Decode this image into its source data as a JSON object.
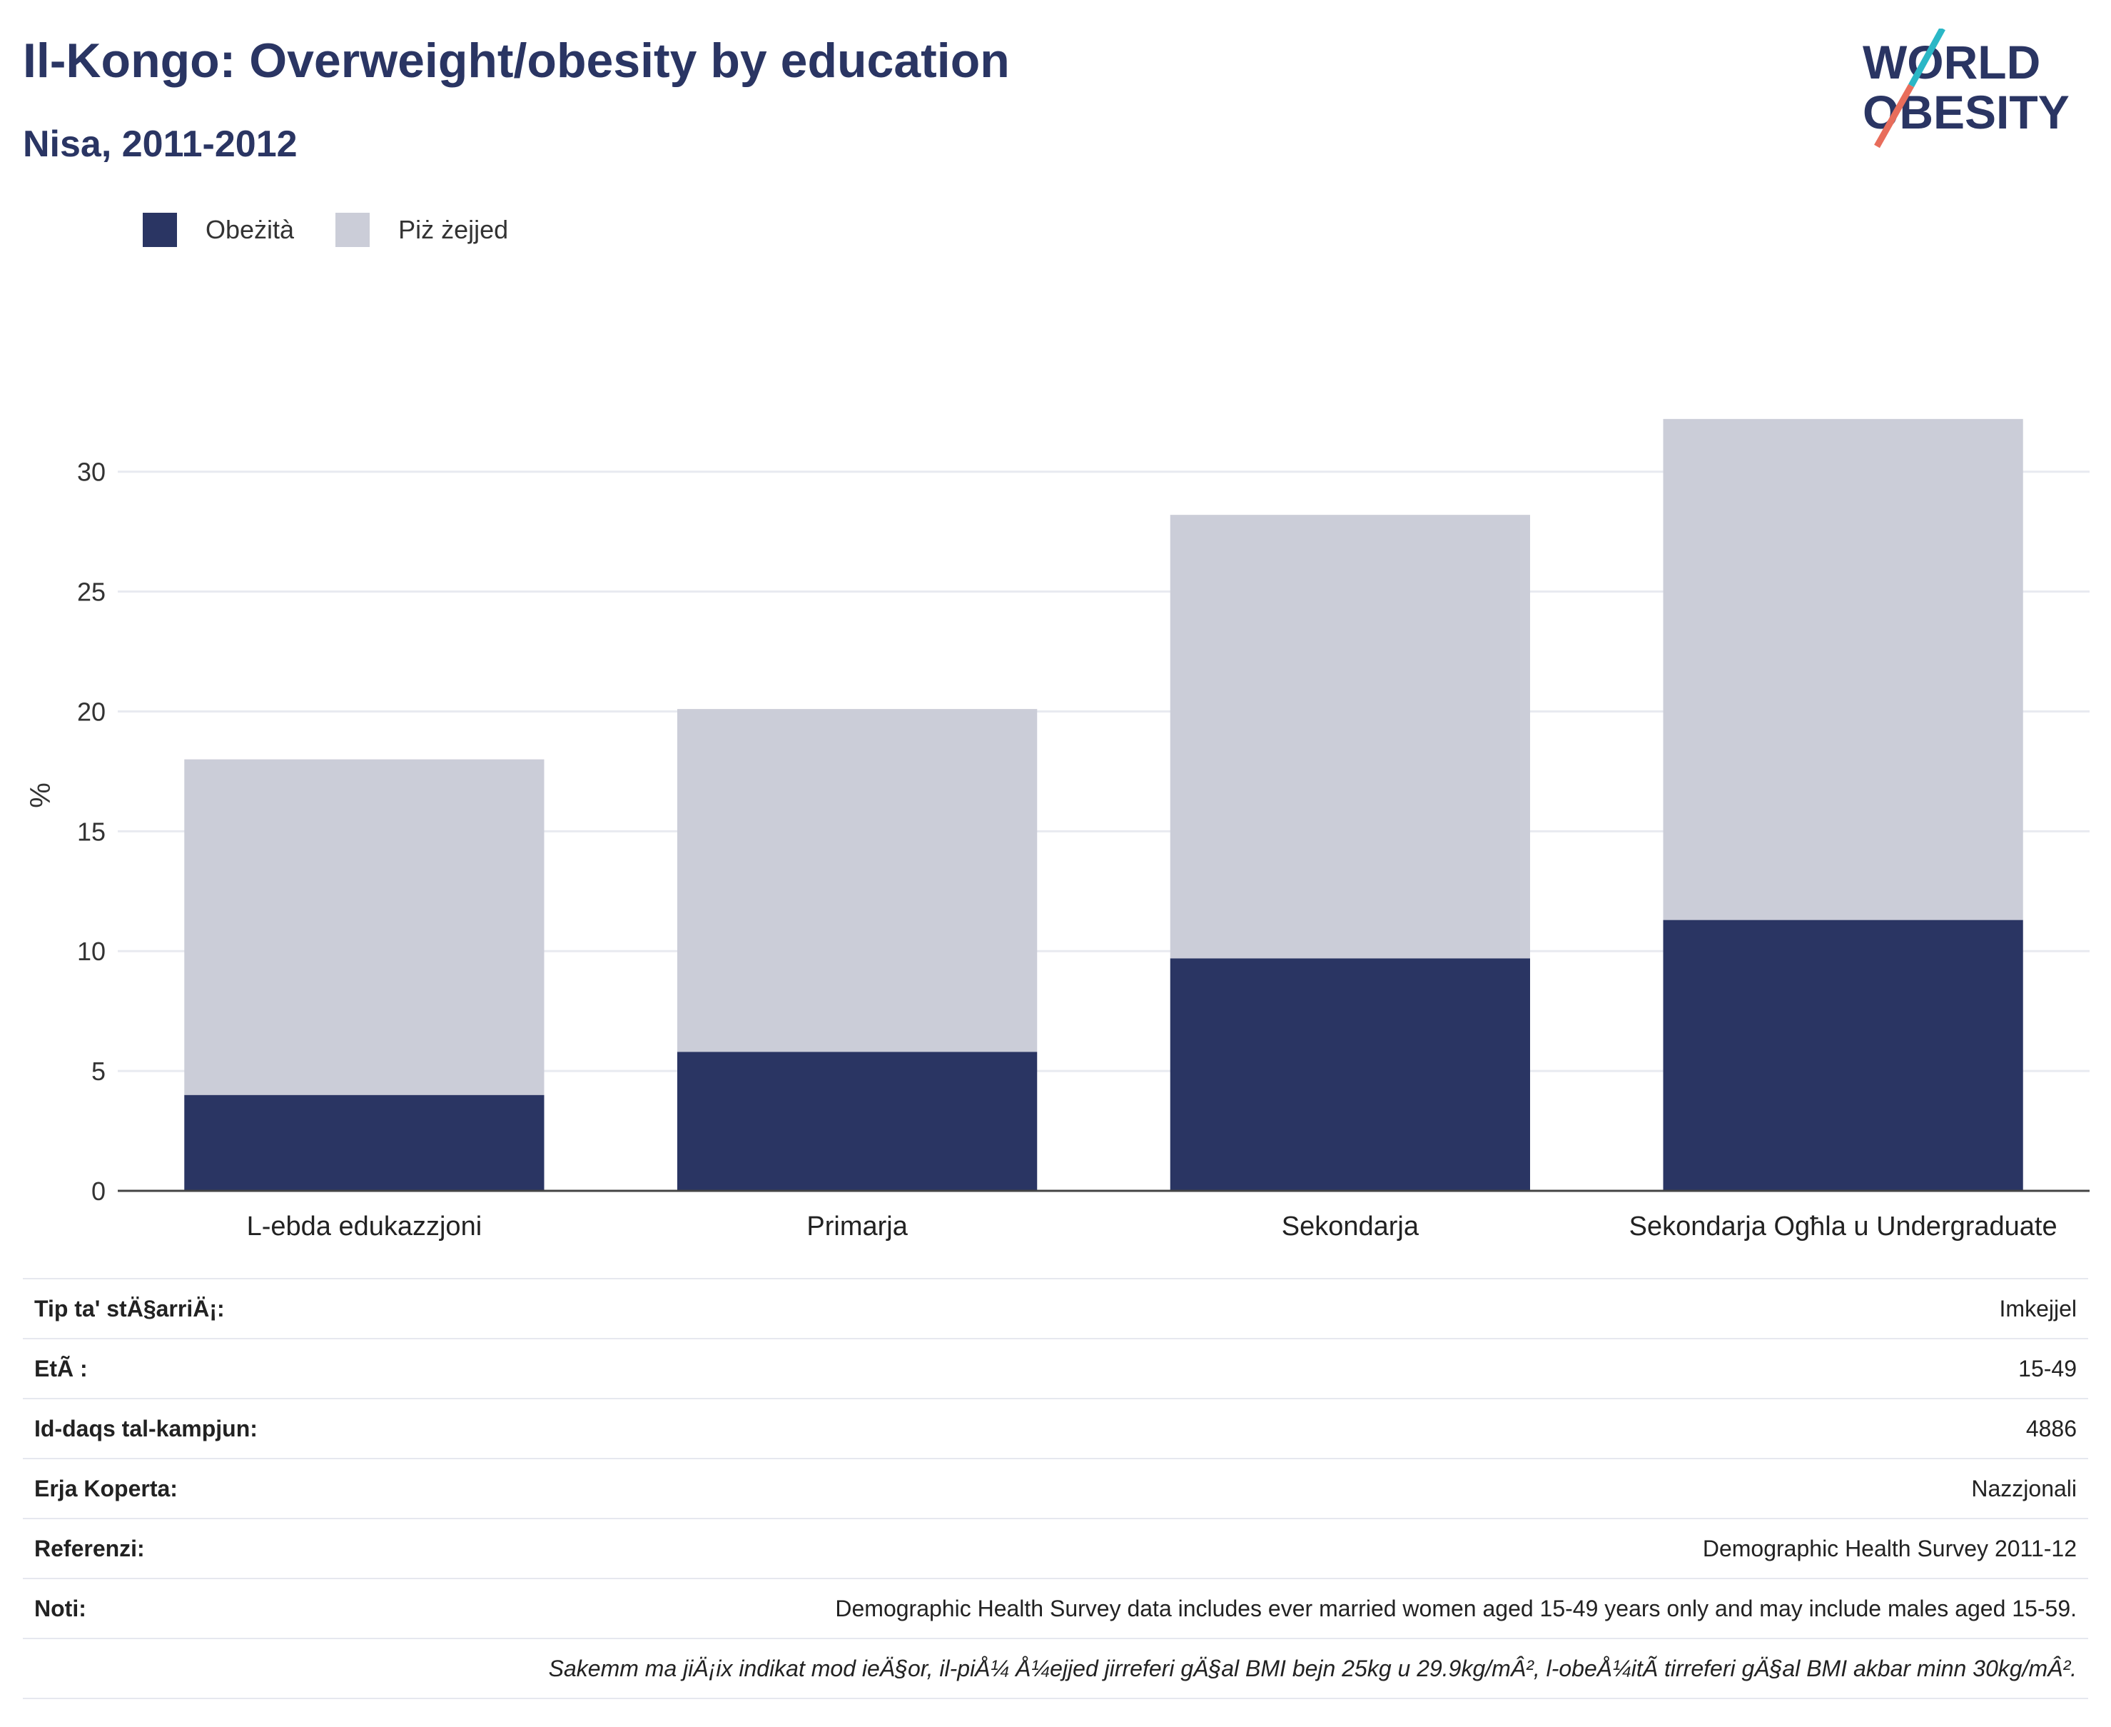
{
  "header": {
    "title": "Il-Kongo: Overweight/obesity by education",
    "subtitle": "Nisa, 2011-2012"
  },
  "logo": {
    "line1": "WORLD",
    "line2": "OBESITY",
    "accent_colors": [
      "#2ab7c6",
      "#e86d5b"
    ]
  },
  "legend": [
    {
      "label": "Obeżità",
      "color": "#2a3563"
    },
    {
      "label": "Piż żejjed",
      "color": "#cbcdd8"
    }
  ],
  "chart_data": {
    "type": "bar",
    "stacked": true,
    "categories": [
      "L-ebda edukazzjoni",
      "Primarja",
      "Sekondarja",
      "Sekondarja Ogħla u Undergraduate"
    ],
    "series": [
      {
        "name": "Obeżità",
        "values": [
          4.0,
          5.8,
          9.7,
          11.3
        ],
        "color": "#2a3563"
      },
      {
        "name": "Piż żejjed",
        "values": [
          14.0,
          14.3,
          18.5,
          20.9
        ],
        "color": "#cbcdd8"
      }
    ],
    "ylabel": "%",
    "ylim": [
      0,
      33
    ],
    "yticks": [
      0,
      5,
      10,
      15,
      20,
      25,
      30
    ],
    "grid": true,
    "legend_position": "top-left"
  },
  "info": {
    "rows": [
      {
        "label": "Tip ta' stÄ§arriÄ¡:",
        "value": "Imkejjel"
      },
      {
        "label": "EtÃ :",
        "value": "15-49"
      },
      {
        "label": "Id-daqs tal-kampjun:",
        "value": "4886"
      },
      {
        "label": "Erja Koperta:",
        "value": "Nazzjonali"
      },
      {
        "label": "Referenzi:",
        "value": "Demographic Health Survey 2011-12"
      },
      {
        "label": "Noti:",
        "value": "Demographic Health Survey data includes ever married women aged 15-49 years only and may include males aged 15-59."
      }
    ],
    "footnote": "Sakemm ma jiÄ¡ix indikat mod ieÄ§or, il-piÅ¼ Å¼ejjed jirreferi gÄ§al BMI bejn 25kg u 29.9kg/mÂ², l-obeÅ¼itÃ  tirreferi gÄ§al BMI akbar minn 30kg/mÂ²."
  }
}
